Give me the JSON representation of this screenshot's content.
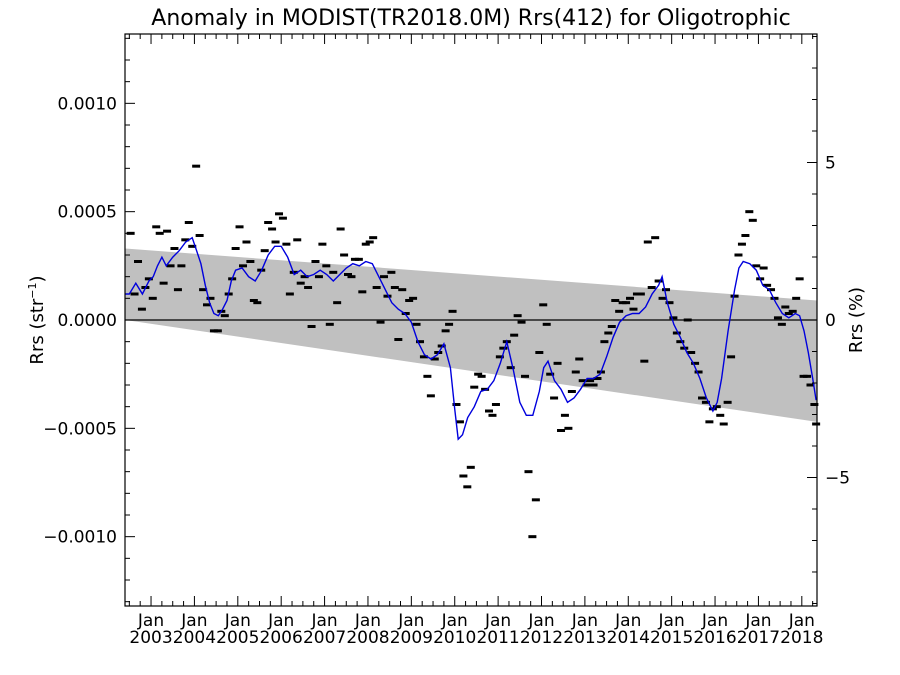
{
  "chart_data": {
    "type": "line",
    "title": "Anomaly in MODIST(TR2018.0M) Rrs(412) for Oligotrophic",
    "ylabel_left": {
      "main": "Rrs (str",
      "sup": "−1",
      "close": ")"
    },
    "ylabel_right": "Rrs (%)",
    "ylim_left": [
      -0.00132,
      0.00132
    ],
    "ylim_right": [
      -9.08,
      9.08
    ],
    "xlim": [
      2002.4,
      2018.35
    ],
    "yticks_left": [
      {
        "value": 0.001,
        "label": "0.0010"
      },
      {
        "value": 0.0005,
        "label": "0.0005"
      },
      {
        "value": 0.0,
        "label": "0.0000"
      },
      {
        "value": -0.0005,
        "label": "−0.0005"
      },
      {
        "value": -0.001,
        "label": "−0.0010"
      }
    ],
    "yticks_right": [
      {
        "value": 5,
        "label": "5"
      },
      {
        "value": 0,
        "label": "0"
      },
      {
        "value": -5,
        "label": "−5"
      }
    ],
    "xticks": [
      {
        "value": 2003,
        "month": "Jan",
        "year": "2003"
      },
      {
        "value": 2004,
        "month": "Jan",
        "year": "2004"
      },
      {
        "value": 2005,
        "month": "Jan",
        "year": "2005"
      },
      {
        "value": 2006,
        "month": "Jan",
        "year": "2006"
      },
      {
        "value": 2007,
        "month": "Jan",
        "year": "2007"
      },
      {
        "value": 2008,
        "month": "Jan",
        "year": "2008"
      },
      {
        "value": 2009,
        "month": "Jan",
        "year": "2009"
      },
      {
        "value": 2010,
        "month": "Jan",
        "year": "2010"
      },
      {
        "value": 2011,
        "month": "Jan",
        "year": "2011"
      },
      {
        "value": 2012,
        "month": "Jan",
        "year": "2012"
      },
      {
        "value": 2013,
        "month": "Jan",
        "year": "2013"
      },
      {
        "value": 2014,
        "month": "Jan",
        "year": "2014"
      },
      {
        "value": 2015,
        "month": "Jan",
        "year": "2015"
      },
      {
        "value": 2016,
        "month": "Jan",
        "year": "2016"
      },
      {
        "value": 2017,
        "month": "Jan",
        "year": "2017"
      },
      {
        "value": 2018,
        "month": "Jan",
        "year": "2018"
      }
    ],
    "band": {
      "color": "#c0c0c0",
      "upper": [
        [
          2002.4,
          0.00033
        ],
        [
          2018.35,
          9e-05
        ]
      ],
      "lower": [
        [
          2002.4,
          0.0
        ],
        [
          2018.35,
          -0.00047
        ]
      ]
    },
    "zero_line": 0.0,
    "monthly_anomalies": [
      [
        2002.53,
        0.0004
      ],
      [
        2002.62,
        0.00012
      ],
      [
        2002.7,
        0.00027
      ],
      [
        2002.79,
        5e-05
      ],
      [
        2002.87,
        0.00015
      ],
      [
        2002.95,
        0.00019
      ],
      [
        2003.04,
        0.0001
      ],
      [
        2003.12,
        0.00043
      ],
      [
        2003.2,
        0.0004
      ],
      [
        2003.29,
        0.00017
      ],
      [
        2003.37,
        0.00041
      ],
      [
        2003.45,
        0.00025
      ],
      [
        2003.54,
        0.00033
      ],
      [
        2003.62,
        0.00014
      ],
      [
        2003.7,
        0.00025
      ],
      [
        2003.79,
        0.00037
      ],
      [
        2003.87,
        0.00045
      ],
      [
        2003.95,
        0.00034
      ],
      [
        2004.04,
        0.00071
      ],
      [
        2004.12,
        0.00039
      ],
      [
        2004.2,
        0.00014
      ],
      [
        2004.29,
        7e-05
      ],
      [
        2004.37,
        0.0001
      ],
      [
        2004.45,
        -5e-05
      ],
      [
        2004.54,
        -5e-05
      ],
      [
        2004.62,
        4e-05
      ],
      [
        2004.7,
        2e-05
      ],
      [
        2004.79,
        0.00012
      ],
      [
        2004.87,
        0.00019
      ],
      [
        2004.95,
        0.00033
      ],
      [
        2005.04,
        0.00043
      ],
      [
        2005.12,
        0.00025
      ],
      [
        2005.2,
        0.00036
      ],
      [
        2005.29,
        0.00027
      ],
      [
        2005.37,
        9e-05
      ],
      [
        2005.45,
        8e-05
      ],
      [
        2005.54,
        0.00023
      ],
      [
        2005.62,
        0.00032
      ],
      [
        2005.7,
        0.00045
      ],
      [
        2005.79,
        0.00042
      ],
      [
        2005.87,
        0.00036
      ],
      [
        2005.95,
        0.00049
      ],
      [
        2006.04,
        0.00047
      ],
      [
        2006.12,
        0.00035
      ],
      [
        2006.2,
        0.00012
      ],
      [
        2006.29,
        0.00022
      ],
      [
        2006.37,
        0.00037
      ],
      [
        2006.45,
        0.00017
      ],
      [
        2006.54,
        0.0002
      ],
      [
        2006.62,
        0.00015
      ],
      [
        2006.7,
        -3e-05
      ],
      [
        2006.79,
        0.00027
      ],
      [
        2006.87,
        0.0002
      ],
      [
        2006.95,
        0.00035
      ],
      [
        2007.04,
        0.00025
      ],
      [
        2007.12,
        -2e-05
      ],
      [
        2007.2,
        0.00022
      ],
      [
        2007.29,
        8e-05
      ],
      [
        2007.37,
        0.00042
      ],
      [
        2007.45,
        0.0003
      ],
      [
        2007.54,
        0.00021
      ],
      [
        2007.62,
        0.0002
      ],
      [
        2007.7,
        0.00028
      ],
      [
        2007.79,
        0.00028
      ],
      [
        2007.87,
        0.00013
      ],
      [
        2007.95,
        0.00035
      ],
      [
        2008.04,
        0.00036
      ],
      [
        2008.12,
        0.00038
      ],
      [
        2008.2,
        0.00015
      ],
      [
        2008.29,
        -1e-05
      ],
      [
        2008.37,
        0.0002
      ],
      [
        2008.45,
        0.00011
      ],
      [
        2008.54,
        0.00022
      ],
      [
        2008.62,
        0.00015
      ],
      [
        2008.7,
        -9e-05
      ],
      [
        2008.79,
        0.00014
      ],
      [
        2008.87,
        3e-05
      ],
      [
        2008.95,
        9e-05
      ],
      [
        2009.04,
        0.0001
      ],
      [
        2009.12,
        -2e-05
      ],
      [
        2009.2,
        -0.0001
      ],
      [
        2009.29,
        -0.00017
      ],
      [
        2009.37,
        -0.00026
      ],
      [
        2009.45,
        -0.00035
      ],
      [
        2009.54,
        -0.00018
      ],
      [
        2009.62,
        -0.00015
      ],
      [
        2009.7,
        -0.00012
      ],
      [
        2009.79,
        -5e-05
      ],
      [
        2009.87,
        -2e-05
      ],
      [
        2009.95,
        4e-05
      ],
      [
        2010.04,
        -0.00039
      ],
      [
        2010.12,
        -0.00047
      ],
      [
        2010.2,
        -0.00072
      ],
      [
        2010.29,
        -0.00077
      ],
      [
        2010.37,
        -0.00068
      ],
      [
        2010.45,
        -0.00031
      ],
      [
        2010.54,
        -0.00025
      ],
      [
        2010.62,
        -0.00026
      ],
      [
        2010.7,
        -0.00032
      ],
      [
        2010.79,
        -0.00042
      ],
      [
        2010.87,
        -0.00044
      ],
      [
        2010.95,
        -0.00039
      ],
      [
        2011.04,
        -0.00017
      ],
      [
        2011.12,
        -0.00013
      ],
      [
        2011.2,
        -0.0001
      ],
      [
        2011.29,
        -0.00022
      ],
      [
        2011.37,
        -7e-05
      ],
      [
        2011.45,
        2e-05
      ],
      [
        2011.54,
        -1e-05
      ],
      [
        2011.62,
        -0.00026
      ],
      [
        2011.7,
        -0.0007
      ],
      [
        2011.79,
        -0.001
      ],
      [
        2011.87,
        -0.00083
      ],
      [
        2011.95,
        -0.00015
      ],
      [
        2012.04,
        7e-05
      ],
      [
        2012.12,
        -2e-05
      ],
      [
        2012.2,
        -0.00025
      ],
      [
        2012.29,
        -0.00036
      ],
      [
        2012.37,
        -0.0002
      ],
      [
        2012.45,
        -0.00051
      ],
      [
        2012.54,
        -0.00044
      ],
      [
        2012.62,
        -0.0005
      ],
      [
        2012.7,
        -0.00033
      ],
      [
        2012.79,
        -0.00024
      ],
      [
        2012.87,
        -0.00018
      ],
      [
        2012.95,
        -0.00028
      ],
      [
        2013.04,
        -0.0003
      ],
      [
        2013.12,
        -0.00028
      ],
      [
        2013.2,
        -0.0003
      ],
      [
        2013.29,
        -0.00027
      ],
      [
        2013.37,
        -0.00024
      ],
      [
        2013.45,
        -0.0001
      ],
      [
        2013.54,
        -6e-05
      ],
      [
        2013.62,
        -3e-05
      ],
      [
        2013.7,
        9e-05
      ],
      [
        2013.79,
        4e-05
      ],
      [
        2013.87,
        8e-05
      ],
      [
        2013.95,
        8e-05
      ],
      [
        2014.04,
        0.0001
      ],
      [
        2014.12,
        5e-05
      ],
      [
        2014.2,
        0.00012
      ],
      [
        2014.29,
        0.00012
      ],
      [
        2014.37,
        -0.00019
      ],
      [
        2014.45,
        0.00036
      ],
      [
        2014.54,
        0.00015
      ],
      [
        2014.62,
        0.00038
      ],
      [
        2014.7,
        0.00018
      ],
      [
        2014.79,
        0.0001
      ],
      [
        2014.87,
        0.00014
      ],
      [
        2014.95,
        8e-05
      ],
      [
        2015.04,
        1e-05
      ],
      [
        2015.12,
        -6e-05
      ],
      [
        2015.2,
        -0.0001
      ],
      [
        2015.29,
        -0.00013
      ],
      [
        2015.37,
        0.0
      ],
      [
        2015.45,
        -0.00015
      ],
      [
        2015.54,
        -0.0002
      ],
      [
        2015.62,
        -0.00024
      ],
      [
        2015.7,
        -0.00036
      ],
      [
        2015.79,
        -0.00038
      ],
      [
        2015.87,
        -0.00047
      ],
      [
        2015.95,
        -0.00041
      ],
      [
        2016.04,
        -0.0004
      ],
      [
        2016.12,
        -0.00044
      ],
      [
        2016.2,
        -0.00048
      ],
      [
        2016.29,
        -0.00038
      ],
      [
        2016.37,
        -0.00017
      ],
      [
        2016.45,
        0.00011
      ],
      [
        2016.54,
        0.0003
      ],
      [
        2016.62,
        0.00035
      ],
      [
        2016.7,
        0.00039
      ],
      [
        2016.79,
        0.0005
      ],
      [
        2016.87,
        0.00046
      ],
      [
        2016.95,
        0.00025
      ],
      [
        2017.04,
        0.00019
      ],
      [
        2017.12,
        0.00024
      ],
      [
        2017.2,
        0.00016
      ],
      [
        2017.29,
        0.00014
      ],
      [
        2017.37,
        0.0001
      ],
      [
        2017.45,
        1e-05
      ],
      [
        2017.54,
        -2e-05
      ],
      [
        2017.62,
        6e-05
      ],
      [
        2017.7,
        3e-05
      ],
      [
        2017.79,
        4e-05
      ],
      [
        2017.87,
        0.0001
      ],
      [
        2017.95,
        0.00019
      ],
      [
        2018.04,
        -0.00026
      ],
      [
        2018.12,
        -0.00026
      ],
      [
        2018.2,
        -0.0003
      ],
      [
        2018.29,
        -0.00039
      ],
      [
        2018.33,
        -0.00048
      ]
    ],
    "smoothed": [
      [
        2002.4,
        0.00012
      ],
      [
        2002.5,
        0.00012
      ],
      [
        2002.65,
        0.00017
      ],
      [
        2002.8,
        0.00012
      ],
      [
        2002.95,
        0.00018
      ],
      [
        2003.05,
        0.0002
      ],
      [
        2003.15,
        0.00025
      ],
      [
        2003.25,
        0.00029
      ],
      [
        2003.35,
        0.00025
      ],
      [
        2003.5,
        0.00029
      ],
      [
        2003.65,
        0.00032
      ],
      [
        2003.8,
        0.00036
      ],
      [
        2003.95,
        0.00038
      ],
      [
        2004.05,
        0.00032
      ],
      [
        2004.15,
        0.00026
      ],
      [
        2004.25,
        0.00016
      ],
      [
        2004.35,
        8e-05
      ],
      [
        2004.45,
        3e-05
      ],
      [
        2004.55,
        2e-05
      ],
      [
        2004.65,
        5e-05
      ],
      [
        2004.75,
        9e-05
      ],
      [
        2004.85,
        0.00018
      ],
      [
        2004.95,
        0.00023
      ],
      [
        2005.1,
        0.00024
      ],
      [
        2005.25,
        0.0002
      ],
      [
        2005.4,
        0.00018
      ],
      [
        2005.55,
        0.00023
      ],
      [
        2005.7,
        0.0003
      ],
      [
        2005.85,
        0.00034
      ],
      [
        2006.0,
        0.00034
      ],
      [
        2006.15,
        0.00029
      ],
      [
        2006.3,
        0.00021
      ],
      [
        2006.45,
        0.00023
      ],
      [
        2006.6,
        0.0002
      ],
      [
        2006.75,
        0.00021
      ],
      [
        2006.9,
        0.00023
      ],
      [
        2007.05,
        0.00021
      ],
      [
        2007.2,
        0.00018
      ],
      [
        2007.35,
        0.00021
      ],
      [
        2007.5,
        0.00024
      ],
      [
        2007.65,
        0.00026
      ],
      [
        2007.8,
        0.00025
      ],
      [
        2007.95,
        0.00027
      ],
      [
        2008.1,
        0.00026
      ],
      [
        2008.25,
        0.0002
      ],
      [
        2008.4,
        0.00014
      ],
      [
        2008.55,
        8e-05
      ],
      [
        2008.7,
        5e-05
      ],
      [
        2008.85,
        3e-05
      ],
      [
        2009.0,
        -1e-05
      ],
      [
        2009.15,
        -0.0001
      ],
      [
        2009.3,
        -0.00016
      ],
      [
        2009.45,
        -0.00018
      ],
      [
        2009.6,
        -0.00016
      ],
      [
        2009.75,
        -0.00011
      ],
      [
        2009.9,
        -0.00022
      ],
      [
        2010.0,
        -0.00041
      ],
      [
        2010.08,
        -0.00055
      ],
      [
        2010.18,
        -0.00053
      ],
      [
        2010.3,
        -0.00045
      ],
      [
        2010.45,
        -0.0004
      ],
      [
        2010.6,
        -0.00033
      ],
      [
        2010.75,
        -0.00032
      ],
      [
        2010.9,
        -0.00028
      ],
      [
        2011.05,
        -0.0002
      ],
      [
        2011.2,
        -0.0001
      ],
      [
        2011.35,
        -0.00023
      ],
      [
        2011.5,
        -0.00038
      ],
      [
        2011.65,
        -0.00044
      ],
      [
        2011.8,
        -0.00044
      ],
      [
        2011.95,
        -0.00033
      ],
      [
        2012.05,
        -0.00022
      ],
      [
        2012.15,
        -0.00019
      ],
      [
        2012.3,
        -0.00028
      ],
      [
        2012.45,
        -0.00032
      ],
      [
        2012.6,
        -0.00038
      ],
      [
        2012.75,
        -0.00036
      ],
      [
        2012.9,
        -0.00032
      ],
      [
        2013.05,
        -0.00027
      ],
      [
        2013.2,
        -0.00027
      ],
      [
        2013.35,
        -0.00025
      ],
      [
        2013.5,
        -0.00017
      ],
      [
        2013.65,
        -8e-05
      ],
      [
        2013.8,
        -1e-05
      ],
      [
        2013.95,
        2e-05
      ],
      [
        2014.1,
        3e-05
      ],
      [
        2014.25,
        3e-05
      ],
      [
        2014.4,
        6e-05
      ],
      [
        2014.55,
        0.00012
      ],
      [
        2014.7,
        0.00016
      ],
      [
        2014.78,
        0.0002
      ],
      [
        2014.9,
        8e-05
      ],
      [
        2015.05,
        -2e-05
      ],
      [
        2015.2,
        -8e-05
      ],
      [
        2015.35,
        -0.00015
      ],
      [
        2015.5,
        -0.0002
      ],
      [
        2015.65,
        -0.00027
      ],
      [
        2015.8,
        -0.00036
      ],
      [
        2015.95,
        -0.00042
      ],
      [
        2016.05,
        -0.00038
      ],
      [
        2016.15,
        -0.00027
      ],
      [
        2016.3,
        -5e-05
      ],
      [
        2016.45,
        0.00014
      ],
      [
        2016.55,
        0.00024
      ],
      [
        2016.65,
        0.00027
      ],
      [
        2016.8,
        0.00026
      ],
      [
        2016.95,
        0.00023
      ],
      [
        2017.1,
        0.00016
      ],
      [
        2017.25,
        0.00014
      ],
      [
        2017.4,
        8e-05
      ],
      [
        2017.55,
        3e-05
      ],
      [
        2017.7,
        1e-05
      ],
      [
        2017.85,
        3e-05
      ],
      [
        2017.95,
        2e-05
      ],
      [
        2018.05,
        -5e-05
      ],
      [
        2018.15,
        -0.00015
      ],
      [
        2018.25,
        -0.00027
      ],
      [
        2018.33,
        -0.00037
      ]
    ],
    "colors": {
      "smoothed": "#0000dd",
      "points": "#000000",
      "band": "#c0c0c0"
    },
    "grid": false,
    "legend": "none"
  }
}
